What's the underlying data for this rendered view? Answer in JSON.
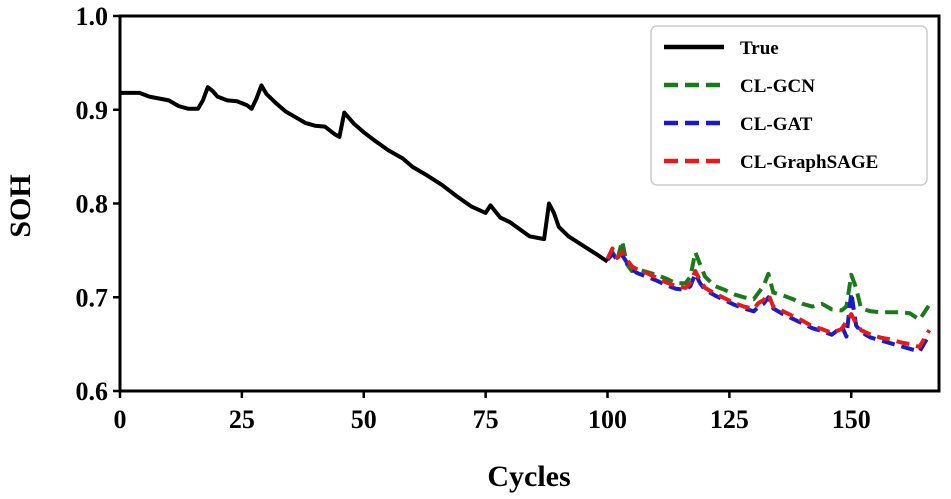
{
  "chart_data": {
    "type": "line",
    "title": "",
    "xlabel": "Cycles",
    "ylabel": "SOH",
    "xlim": [
      0,
      168
    ],
    "ylim": [
      0.6,
      1.0
    ],
    "xticks": [
      0,
      25,
      50,
      75,
      100,
      125,
      150
    ],
    "yticks": [
      0.6,
      0.7,
      0.8,
      0.9,
      1.0
    ],
    "xtick_labels": [
      "0",
      "25",
      "50",
      "75",
      "100",
      "125",
      "150"
    ],
    "ytick_labels": [
      "0.6",
      "0.7",
      "0.8",
      "0.9",
      "1.0"
    ],
    "grid": false,
    "legend_position": "top-right",
    "series": [
      {
        "name": "True",
        "color": "#000000",
        "style": "solid",
        "x": [
          0,
          2,
          4,
          6,
          8,
          10,
          12,
          14,
          16,
          17,
          18,
          19,
          20,
          22,
          24,
          26,
          27,
          28,
          29,
          30,
          32,
          34,
          36,
          38,
          40,
          42,
          44,
          45,
          46,
          48,
          50,
          52,
          55,
          58,
          60,
          63,
          66,
          69,
          72,
          75,
          76,
          78,
          80,
          84,
          87,
          88,
          89,
          90,
          92,
          95,
          98,
          100
        ],
        "y": [
          0.918,
          0.918,
          0.918,
          0.914,
          0.912,
          0.91,
          0.904,
          0.901,
          0.901,
          0.91,
          0.924,
          0.92,
          0.914,
          0.91,
          0.909,
          0.905,
          0.901,
          0.912,
          0.926,
          0.917,
          0.907,
          0.898,
          0.892,
          0.886,
          0.883,
          0.882,
          0.874,
          0.871,
          0.897,
          0.885,
          0.876,
          0.868,
          0.857,
          0.848,
          0.839,
          0.83,
          0.82,
          0.808,
          0.797,
          0.79,
          0.798,
          0.785,
          0.78,
          0.765,
          0.762,
          0.8,
          0.79,
          0.775,
          0.765,
          0.755,
          0.745,
          0.738
        ]
      },
      {
        "name": "CL-GCN",
        "color": "#1a7a1a",
        "style": "dashed",
        "x": [
          100,
          101,
          102,
          103,
          104,
          105,
          106,
          108,
          110,
          112,
          114,
          116,
          117,
          118,
          119,
          120,
          122,
          124,
          126,
          128,
          130,
          131,
          132,
          133,
          134,
          136,
          138,
          140,
          142,
          144,
          146,
          148,
          149,
          150,
          151,
          152,
          154,
          156,
          158,
          160,
          162,
          164,
          166
        ],
        "y": [
          0.74,
          0.748,
          0.74,
          0.76,
          0.735,
          0.728,
          0.73,
          0.727,
          0.724,
          0.72,
          0.715,
          0.715,
          0.722,
          0.748,
          0.735,
          0.722,
          0.712,
          0.708,
          0.703,
          0.7,
          0.698,
          0.705,
          0.712,
          0.725,
          0.705,
          0.702,
          0.698,
          0.693,
          0.69,
          0.693,
          0.687,
          0.686,
          0.69,
          0.724,
          0.71,
          0.688,
          0.685,
          0.684,
          0.684,
          0.684,
          0.683,
          0.676,
          0.692
        ]
      },
      {
        "name": "CL-GAT",
        "color": "#1a1acc",
        "style": "dashed",
        "x": [
          100,
          101,
          102,
          103,
          104,
          105,
          106,
          108,
          110,
          112,
          114,
          116,
          117,
          118,
          119,
          120,
          122,
          124,
          126,
          128,
          130,
          131,
          132,
          133,
          134,
          136,
          138,
          140,
          142,
          144,
          146,
          147,
          148,
          149,
          150,
          151,
          152,
          154,
          156,
          158,
          160,
          162,
          164,
          166
        ],
        "y": [
          0.74,
          0.746,
          0.74,
          0.745,
          0.737,
          0.73,
          0.726,
          0.722,
          0.718,
          0.713,
          0.709,
          0.708,
          0.712,
          0.725,
          0.715,
          0.708,
          0.702,
          0.697,
          0.692,
          0.688,
          0.685,
          0.69,
          0.693,
          0.7,
          0.688,
          0.682,
          0.677,
          0.672,
          0.667,
          0.664,
          0.66,
          0.664,
          0.67,
          0.658,
          0.705,
          0.67,
          0.663,
          0.657,
          0.654,
          0.651,
          0.648,
          0.645,
          0.642,
          0.66
        ]
      },
      {
        "name": "CL-GraphSAGE",
        "color": "#e81919",
        "style": "dashed",
        "x": [
          100,
          101,
          102,
          103,
          104,
          105,
          106,
          108,
          110,
          112,
          114,
          116,
          117,
          118,
          119,
          120,
          122,
          124,
          126,
          128,
          130,
          131,
          132,
          133,
          134,
          136,
          138,
          140,
          142,
          144,
          146,
          148,
          149,
          150,
          151,
          152,
          154,
          156,
          158,
          160,
          162,
          164,
          166
        ],
        "y": [
          0.741,
          0.752,
          0.742,
          0.748,
          0.74,
          0.733,
          0.73,
          0.726,
          0.721,
          0.716,
          0.712,
          0.71,
          0.715,
          0.728,
          0.718,
          0.71,
          0.704,
          0.699,
          0.694,
          0.69,
          0.688,
          0.694,
          0.697,
          0.703,
          0.69,
          0.685,
          0.68,
          0.675,
          0.669,
          0.666,
          0.662,
          0.666,
          0.674,
          0.682,
          0.672,
          0.665,
          0.66,
          0.657,
          0.655,
          0.652,
          0.65,
          0.647,
          0.665
        ]
      }
    ]
  }
}
